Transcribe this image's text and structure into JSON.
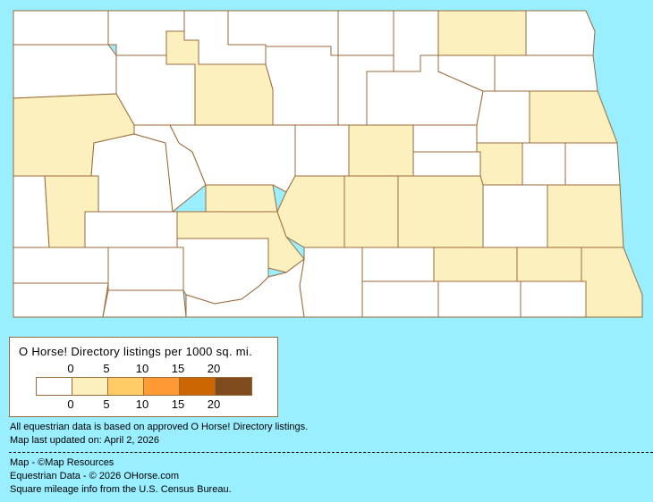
{
  "map": {
    "state": "North Dakota",
    "border_color": "#9B6A3A",
    "background_color": "#99EEFF"
  },
  "legend": {
    "title": "O Horse! Directory listings per 1000 sq. mi.",
    "top_ticks": [
      "0",
      "5",
      "10",
      "15",
      "20"
    ],
    "bottom_ticks": [
      "0",
      "5",
      "10",
      "15",
      "20"
    ],
    "bins": [
      {
        "range": "0",
        "color": "#FFFFFF"
      },
      {
        "range": "0-5",
        "color": "#FCF1BE"
      },
      {
        "range": "5-10",
        "color": "#FFCC66"
      },
      {
        "range": "10-15",
        "color": "#FF9933"
      },
      {
        "range": "15-20",
        "color": "#CC6600"
      },
      {
        "range": "20+",
        "color": "#7F4A1E"
      }
    ]
  },
  "notes": {
    "data_basis": "All equestrian data is based on approved O Horse! Directory listings.",
    "updated": "Map last updated on: April 2, 2026"
  },
  "credits": {
    "map": "Map - ©Map Resources",
    "data": "Equestrian Data - © 2026 OHorse.com",
    "census": "Square mileage info from the U.S. Census Bureau."
  }
}
